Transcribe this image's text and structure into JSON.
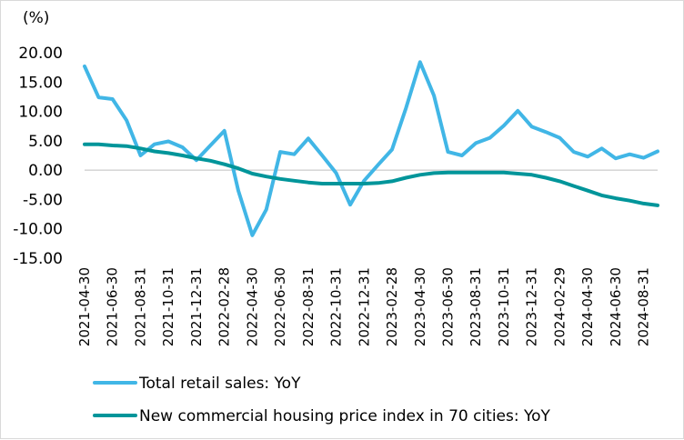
{
  "chart_data": {
    "type": "line",
    "unit_label": "(%)",
    "ylim": [
      -15,
      20
    ],
    "yticks": [
      "20.00",
      "15.00",
      "10.00",
      "5.00",
      "0.00",
      "-5.00",
      "-10.00",
      "-15.00"
    ],
    "ytick_values": [
      20,
      15,
      10,
      5,
      0,
      -5,
      -10,
      -15
    ],
    "grid": false,
    "legend_position": "bottom",
    "x": [
      "2021-04-30",
      "2021-05-31",
      "2021-06-30",
      "2021-07-31",
      "2021-08-31",
      "2021-09-30",
      "2021-10-31",
      "2021-11-30",
      "2021-12-31",
      "2022-01-31",
      "2022-02-28",
      "2022-03-31",
      "2022-04-30",
      "2022-05-31",
      "2022-06-30",
      "2022-07-31",
      "2022-08-31",
      "2022-09-30",
      "2022-10-31",
      "2022-11-30",
      "2022-12-31",
      "2023-01-31",
      "2023-02-28",
      "2023-03-31",
      "2023-04-30",
      "2023-05-31",
      "2023-06-30",
      "2023-07-31",
      "2023-08-31",
      "2023-09-30",
      "2023-10-31",
      "2023-11-30",
      "2023-12-31",
      "2024-01-31",
      "2024-02-29",
      "2024-03-31",
      "2024-04-30",
      "2024-05-31",
      "2024-06-30",
      "2024-07-31",
      "2024-08-31",
      "2024-09-30"
    ],
    "xtick_labels": [
      "2021-04-30",
      "2021-06-30",
      "2021-08-31",
      "2021-10-31",
      "2021-12-31",
      "2022-02-28",
      "2022-04-30",
      "2022-06-30",
      "2022-08-31",
      "2022-10-31",
      "2022-12-31",
      "2023-02-28",
      "2023-04-30",
      "2023-06-30",
      "2023-08-31",
      "2023-10-31",
      "2023-12-31",
      "2024-02-29",
      "2024-04-30",
      "2024-06-30",
      "2024-08-31"
    ],
    "series": [
      {
        "name": "Total retail sales: YoY",
        "color": "#41b6e6",
        "values": [
          17.7,
          12.4,
          12.1,
          8.5,
          2.5,
          4.4,
          4.9,
          3.9,
          1.7,
          4.2,
          6.7,
          -3.5,
          -11.1,
          -6.7,
          3.1,
          2.7,
          5.4,
          2.5,
          -0.5,
          -5.9,
          -1.8,
          0.9,
          3.5,
          10.6,
          18.4,
          12.7,
          3.1,
          2.5,
          4.6,
          5.5,
          7.6,
          10.1,
          7.4,
          6.5,
          5.5,
          3.1,
          2.3,
          3.7,
          2.0,
          2.7,
          2.1,
          3.2
        ]
      },
      {
        "name": "New commercial housing price index in 70 cities: YoY",
        "color": "#00959a",
        "values": [
          4.4,
          4.4,
          4.2,
          4.1,
          3.7,
          3.2,
          2.9,
          2.5,
          2.0,
          1.6,
          1.0,
          0.3,
          -0.6,
          -1.1,
          -1.5,
          -1.8,
          -2.1,
          -2.3,
          -2.3,
          -2.3,
          -2.3,
          -2.2,
          -1.9,
          -1.3,
          -0.8,
          -0.5,
          -0.4,
          -0.4,
          -0.4,
          -0.4,
          -0.4,
          -0.6,
          -0.8,
          -1.3,
          -1.9,
          -2.7,
          -3.5,
          -4.3,
          -4.8,
          -5.2,
          -5.7,
          -6.0
        ]
      }
    ]
  }
}
